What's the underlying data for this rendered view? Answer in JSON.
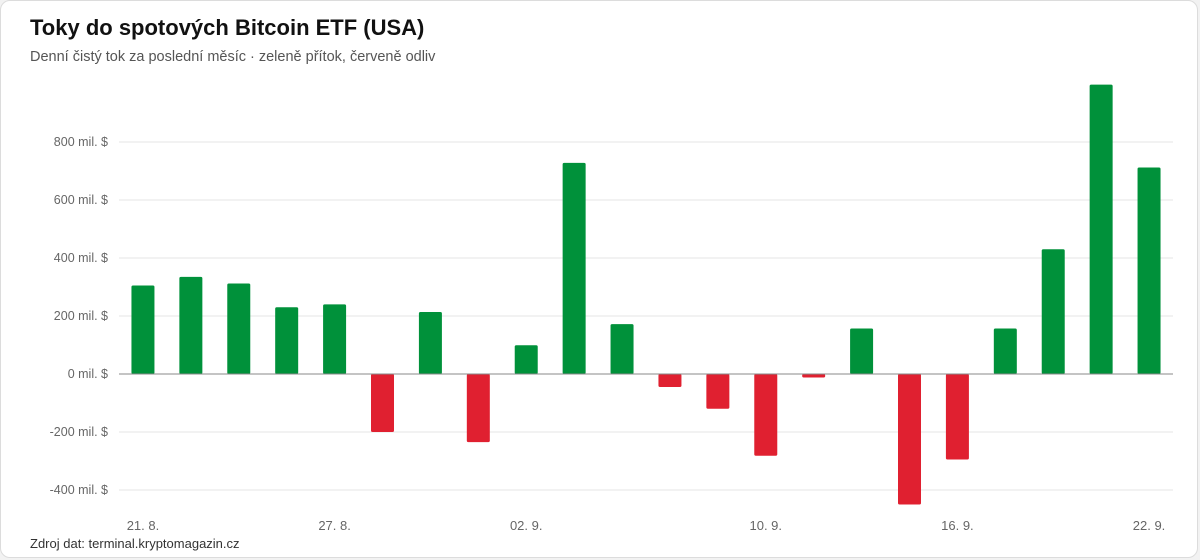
{
  "header": {
    "title": "Toky do spotových Bitcoin ETF (USA)",
    "subtitle": "Denní čistý tok za poslední měsíc · zeleně přítok, červeně odliv"
  },
  "footer": {
    "source": "Zdroj dat: terminal.kryptomagazin.cz"
  },
  "colors": {
    "inflow": "#00913a",
    "outflow": "#e02030",
    "grid": "#e6e6e6",
    "axis": "#888888",
    "tick_text": "#666666"
  },
  "chart_data": {
    "type": "bar",
    "unit": "mil. $",
    "categories": [
      "21. 8.",
      "",
      "",
      "",
      "27. 8.",
      "",
      "",
      "",
      "02. 9.",
      "",
      "",
      "",
      "",
      "10. 9.",
      "",
      "",
      "",
      "16. 9.",
      "",
      "",
      "",
      "22. 9."
    ],
    "values": [
      305,
      335,
      312,
      230,
      240,
      -200,
      214,
      -235,
      99,
      728,
      172,
      -45,
      -120,
      -282,
      -12,
      157,
      -450,
      -295,
      157,
      430,
      998,
      712
    ],
    "y_ticks": [
      -400,
      -200,
      0,
      200,
      400,
      600,
      800
    ],
    "y_tick_labels": [
      "-400 mil. $",
      "-200 mil. $",
      "0 mil. $",
      "200 mil. $",
      "400 mil. $",
      "600 mil. $",
      "800 mil. $"
    ],
    "x_tick_labels": [
      {
        "index": 0,
        "label": "21. 8."
      },
      {
        "index": 4,
        "label": "27. 8."
      },
      {
        "index": 8,
        "label": "02. 9."
      },
      {
        "index": 13,
        "label": "10. 9."
      },
      {
        "index": 17,
        "label": "16. 9."
      },
      {
        "index": 21,
        "label": "22. 9."
      }
    ],
    "ylim": [
      -470,
      1020
    ],
    "grid": true,
    "legend": "none"
  }
}
